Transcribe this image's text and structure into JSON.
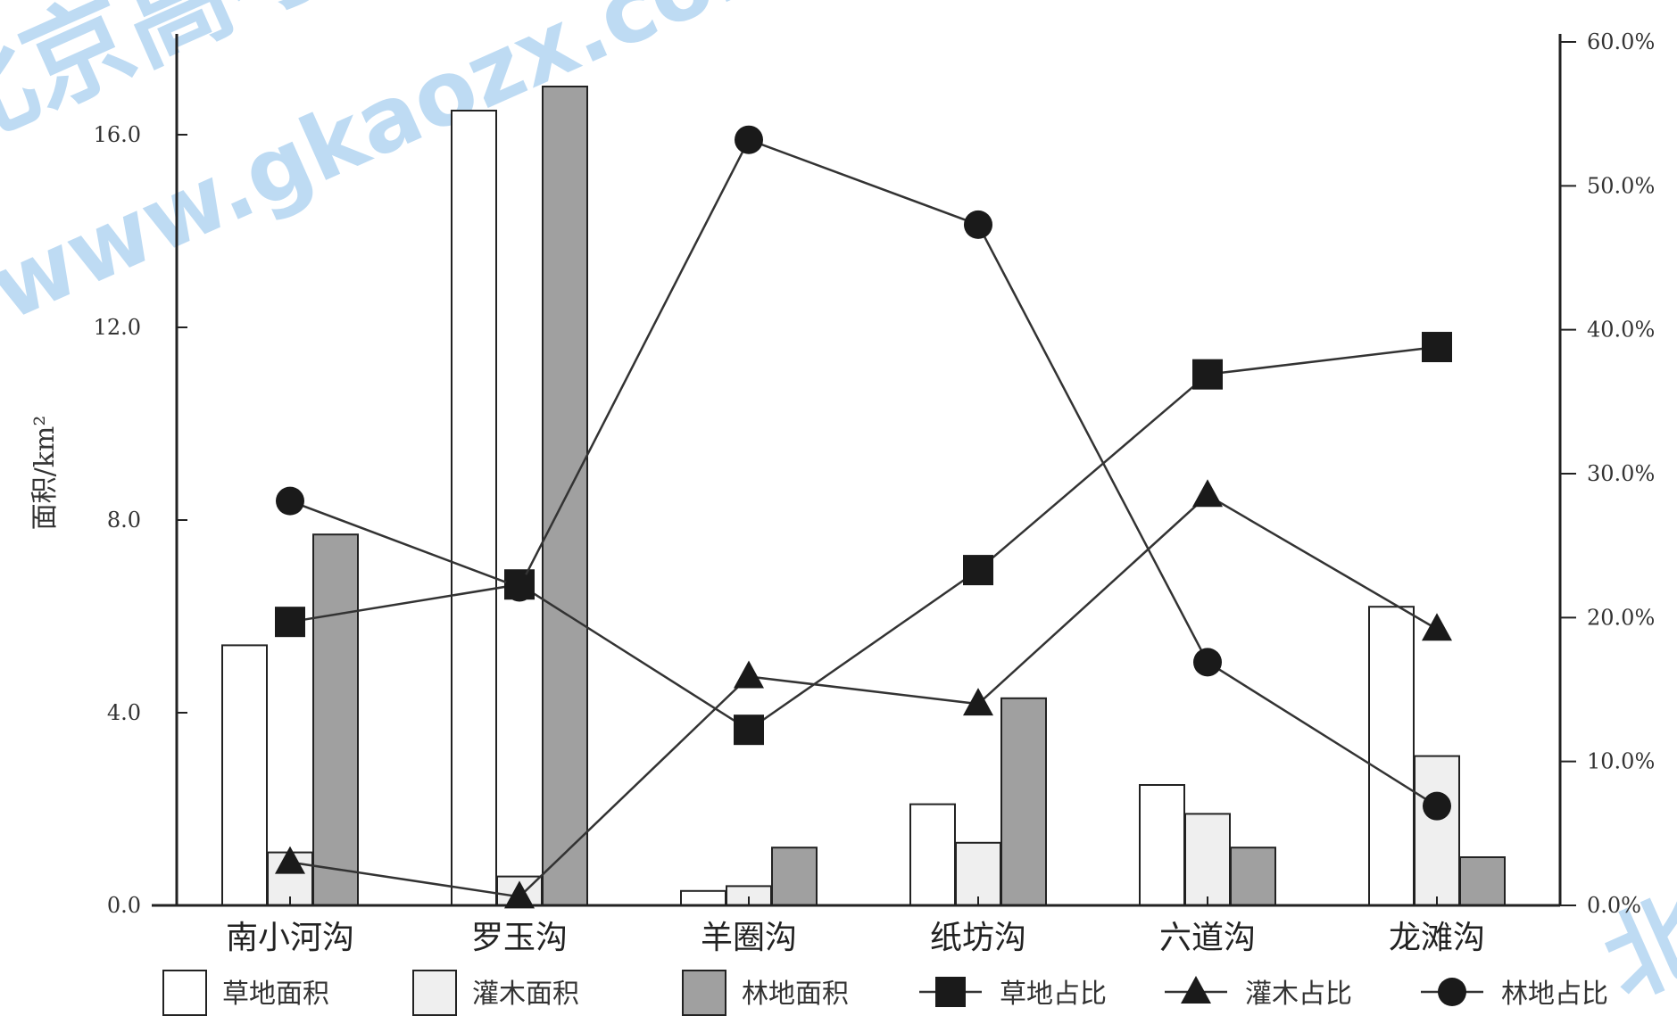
{
  "chart_data": {
    "type": "bar",
    "categories": [
      "南小河沟",
      "罗玉沟",
      "羊圈沟",
      "纸坊沟",
      "六道沟",
      "龙滩沟"
    ],
    "ylabel": "面积/km²",
    "ylim": [
      0,
      16
    ],
    "y_ticks": [
      "0.0",
      "4.0",
      "8.0",
      "12.0",
      "16.0"
    ],
    "y2lim": [
      0,
      60
    ],
    "y2_ticks": [
      "0.0%",
      "10.0%",
      "20.0%",
      "30.0%",
      "40.0%",
      "50.0%",
      "60.0%"
    ],
    "bar_series": [
      {
        "name": "草地面积",
        "values": [
          5.4,
          16.5,
          0.3,
          2.1,
          2.5,
          6.2
        ],
        "color": "#ffffff"
      },
      {
        "name": "灌木面积",
        "values": [
          1.1,
          0.6,
          0.4,
          1.3,
          1.9,
          3.1
        ],
        "color": "#efefef"
      },
      {
        "name": "林地面积",
        "values": [
          7.7,
          17.0,
          1.2,
          4.3,
          1.2,
          1.0
        ],
        "color": "#a0a0a0"
      }
    ],
    "line_series": [
      {
        "name": "草地占比",
        "marker": "square",
        "values": [
          19.7,
          22.3,
          12.2,
          23.3,
          36.9,
          38.8
        ]
      },
      {
        "name": "灌木占比",
        "marker": "triangle",
        "values": [
          3.0,
          0.6,
          15.9,
          14.0,
          28.5,
          19.2
        ]
      },
      {
        "name": "林地占比",
        "marker": "circle",
        "values": [
          28.1,
          22.1,
          53.2,
          47.3,
          16.9,
          6.9
        ]
      }
    ],
    "legend": "bottom",
    "grid": false
  },
  "watermark": {
    "text_top": "北京高考在线",
    "text_url": "www.gkaozx.com",
    "text_corner": "北京高考在线"
  }
}
